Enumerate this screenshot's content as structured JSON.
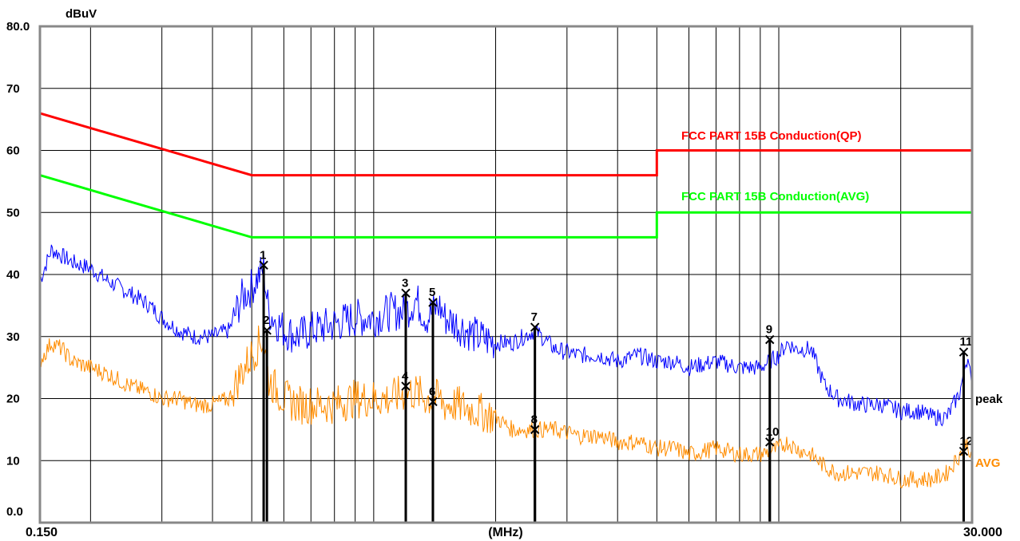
{
  "chart_data": {
    "type": "line",
    "title": "",
    "ylabel": "dBuV",
    "xlabel": "(MHz)",
    "xscale": "log",
    "xlim": [
      0.15,
      30.0
    ],
    "ylim": [
      0,
      80
    ],
    "x_tick_labels": {
      "min": "0.150",
      "max": "30.000"
    },
    "y_tick_labels": [
      "0.0",
      "10",
      "20",
      "30",
      "40",
      "50",
      "60",
      "70",
      "80.0"
    ],
    "grid": true,
    "series": [
      {
        "name": "FCC PART 15B  Conduction(QP)",
        "color": "#ff0000",
        "x": [
          0.15,
          0.5,
          0.5,
          5.0,
          5.0,
          30.0
        ],
        "y": [
          66,
          56,
          56,
          56,
          60,
          60
        ]
      },
      {
        "name": "FCC PART 15B Conduction(AVG)",
        "color": "#00ff00",
        "x": [
          0.15,
          0.5,
          0.5,
          5.0,
          5.0,
          30.0
        ],
        "y": [
          56,
          46,
          46,
          46,
          50,
          50
        ]
      },
      {
        "name": "peak",
        "color": "#0000ff",
        "x": [
          0.15,
          0.16,
          0.17,
          0.18,
          0.2,
          0.22,
          0.25,
          0.28,
          0.3,
          0.33,
          0.36,
          0.4,
          0.44,
          0.47,
          0.5,
          0.535,
          0.55,
          0.6,
          0.65,
          0.7,
          0.8,
          0.9,
          1.0,
          1.1,
          1.2,
          1.27,
          1.35,
          1.45,
          1.5,
          1.6,
          1.8,
          2.0,
          2.2,
          2.5,
          2.8,
          3.2,
          3.6,
          4.0,
          4.5,
          5.0,
          5.5,
          6.0,
          7.0,
          8.0,
          9.0,
          10.0,
          10.5,
          11.0,
          12.0,
          13.0,
          14.0,
          16.0,
          18.0,
          20.0,
          22.0,
          24.0,
          26.0,
          28.0,
          29.0,
          29.5,
          30.0
        ],
        "y": [
          39,
          44,
          43,
          42,
          41,
          39,
          37,
          35,
          33,
          31,
          30,
          30,
          31,
          36,
          38,
          41,
          34,
          31,
          30,
          31,
          32,
          33,
          33,
          34,
          34,
          36,
          33,
          35,
          33,
          32,
          30,
          29,
          29,
          31,
          28,
          27,
          27,
          26,
          27,
          26,
          26,
          25,
          26,
          25,
          25,
          27,
          29,
          28,
          28,
          22,
          20,
          19,
          19,
          18,
          18,
          17,
          17,
          21,
          26,
          27,
          20
        ]
      },
      {
        "name": "AVG",
        "color": "#ff8c00",
        "x": [
          0.15,
          0.16,
          0.17,
          0.18,
          0.2,
          0.22,
          0.25,
          0.28,
          0.3,
          0.33,
          0.36,
          0.4,
          0.44,
          0.47,
          0.5,
          0.535,
          0.55,
          0.6,
          0.65,
          0.7,
          0.8,
          0.9,
          1.0,
          1.1,
          1.2,
          1.27,
          1.35,
          1.45,
          1.5,
          1.6,
          1.8,
          2.0,
          2.2,
          2.5,
          2.8,
          3.2,
          3.6,
          4.0,
          4.5,
          5.0,
          5.5,
          6.0,
          7.0,
          8.0,
          9.0,
          10.0,
          10.5,
          11.0,
          12.0,
          13.0,
          14.0,
          16.0,
          18.0,
          20.0,
          22.0,
          24.0,
          26.0,
          28.0,
          29.0,
          29.5,
          30.0
        ],
        "y": [
          26,
          29,
          28,
          26,
          25,
          24,
          22,
          21,
          20,
          20,
          19,
          19,
          20,
          24,
          27,
          30,
          23,
          20,
          19,
          19,
          19,
          20,
          20,
          20,
          21,
          21,
          20,
          20,
          19,
          19,
          18,
          17,
          15,
          15,
          15,
          14,
          14,
          13,
          13,
          12,
          12,
          11,
          12,
          11,
          11,
          12,
          13,
          12,
          11,
          9,
          8,
          8,
          8,
          7,
          7,
          7,
          8,
          11,
          13,
          12,
          9
        ]
      }
    ],
    "markers": [
      {
        "label": "1",
        "x": 0.535,
        "y": 41.5
      },
      {
        "label": "2",
        "x": 0.545,
        "y": 31
      },
      {
        "label": "3",
        "x": 1.2,
        "y": 37
      },
      {
        "label": "4",
        "x": 1.2,
        "y": 22
      },
      {
        "label": "5",
        "x": 1.4,
        "y": 35.5
      },
      {
        "label": "6",
        "x": 1.4,
        "y": 19.5
      },
      {
        "label": "7",
        "x": 2.5,
        "y": 31.5
      },
      {
        "label": "8",
        "x": 2.5,
        "y": 15
      },
      {
        "label": "9",
        "x": 9.5,
        "y": 29.5
      },
      {
        "label": "10",
        "x": 9.5,
        "y": 13
      },
      {
        "label": "11",
        "x": 28.6,
        "y": 27.5
      },
      {
        "label": "12",
        "x": 28.6,
        "y": 11.5
      }
    ]
  }
}
